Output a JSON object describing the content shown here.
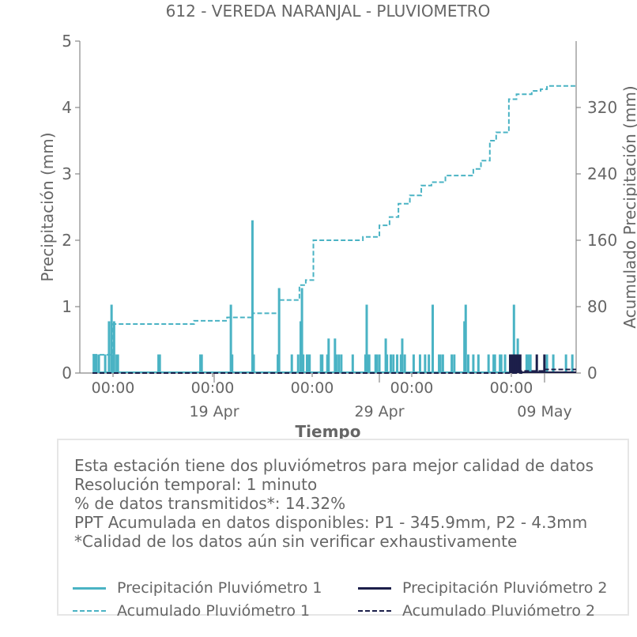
{
  "chart_data": {
    "type": "line",
    "title": "612 - VEREDA NARANJAL - PLUVIOMETRO",
    "xlabel": "Tiempo",
    "ylabel_left": "Precipitación (mm)",
    "ylabel_right": "Acumulado Precipitación (mm)",
    "ylim_left": [
      0,
      5
    ],
    "ylim_right": [
      0,
      400
    ],
    "yticks_left": [
      "0",
      "1",
      "2",
      "3",
      "4",
      "5"
    ],
    "yticks_right": [
      "0",
      "80",
      "160",
      "240",
      "320"
    ],
    "xticks_minor": [
      "00:00",
      "00:00",
      "00:00",
      "00:00",
      "00:00"
    ],
    "xticks_major": [
      "19 Apr",
      "29 Apr",
      "09 May"
    ],
    "grid": false,
    "colors": {
      "pluviometro_1": "#4ab3c4",
      "pluviometro_2": "#1c1f4a",
      "text": "#666666",
      "axis": "#888888"
    },
    "series": [
      {
        "name": "Precipitación Pluviómetro 1",
        "axis": "left",
        "style": "bars",
        "x_days": [
          0.1,
          0.2,
          0.3,
          0.5,
          1.0,
          1.3,
          1.5,
          1.6,
          1.7,
          1.9,
          2.0,
          5.2,
          5.3,
          8.5,
          8.6,
          10.9,
          11.0,
          12.6,
          12.7,
          14.6,
          14.7,
          15.7,
          16.2,
          16.4,
          16.5,
          16.6,
          16.9,
          17.0,
          17.1,
          18.0,
          18.1,
          18.5,
          18.6,
          19.1,
          19.2,
          19.4,
          19.6,
          20.5,
          21.5,
          21.6,
          21.7,
          21.8,
          22.3,
          22.4,
          22.6,
          23.1,
          23.2,
          23.5,
          23.7,
          24.0,
          24.3,
          24.4,
          24.6,
          25.3,
          25.8,
          26.2,
          26.5,
          26.8,
          27.3,
          27.4,
          27.6,
          28.3,
          28.5,
          29.3,
          29.4,
          29.6,
          30.0,
          30.4,
          31.2,
          31.6,
          31.7,
          32.1,
          32.2,
          32.5,
          33.0,
          33.2,
          33.3,
          33.5,
          33.6,
          34.2,
          34.3,
          34.4,
          34.5,
          35.8,
          36.3,
          37.3,
          37.8
        ],
        "values": [
          0.28,
          0.28,
          0.28,
          0.28,
          0.28,
          0.78,
          1.03,
          0.28,
          0.78,
          0.28,
          0.28,
          0.28,
          0.28,
          0.28,
          0.28,
          1.03,
          0.28,
          2.3,
          0.28,
          0.28,
          1.28,
          0.28,
          0.28,
          0.78,
          1.28,
          0.28,
          0.28,
          0.28,
          0.28,
          0.28,
          0.28,
          0.28,
          0.52,
          0.52,
          0.28,
          0.28,
          0.28,
          0.28,
          0.28,
          1.03,
          0.28,
          0.28,
          0.28,
          0.28,
          0.28,
          0.52,
          0.28,
          0.28,
          0.28,
          0.28,
          0.28,
          0.52,
          0.28,
          0.28,
          0.28,
          0.28,
          0.28,
          1.03,
          0.28,
          0.28,
          0.28,
          0.28,
          0.28,
          0.78,
          1.03,
          0.28,
          0.28,
          0.28,
          0.28,
          0.28,
          0.28,
          0.28,
          0.28,
          0.28,
          0.28,
          1.03,
          0.28,
          0.52,
          0.28,
          0.28,
          0.28,
          0.28,
          0.28,
          0.28,
          0.28,
          0.28,
          0.28
        ]
      },
      {
        "name": "Acumulado Pluviómetro 1",
        "axis": "right",
        "style": "dashed-step",
        "x_days": [
          0.0,
          1.3,
          1.6,
          4.2,
          8.0,
          10.6,
          12.6,
          14.7,
          16.3,
          16.8,
          17.4,
          18.8,
          21.3,
          22.6,
          23.4,
          24.1,
          25.0,
          25.9,
          26.7,
          27.8,
          30.0,
          30.6,
          31.3,
          31.8,
          32.8,
          33.4,
          34.6,
          35.3,
          35.8,
          37.1
        ],
        "values": [
          22,
          22,
          59,
          59,
          63,
          67,
          72,
          88,
          106,
          112,
          160,
          160,
          164,
          178,
          188,
          204,
          214,
          226,
          230,
          238,
          246,
          256,
          280,
          290,
          330,
          336,
          340,
          342,
          345.9,
          345.9
        ]
      },
      {
        "name": "Precipitación Pluviómetro 2",
        "axis": "left",
        "style": "bars",
        "x_days": [
          32.9,
          33.0,
          33.1,
          33.2,
          33.3,
          33.4,
          33.5,
          33.6,
          33.7,
          35.0,
          35.6
        ],
        "values": [
          0.28,
          0.28,
          0.28,
          0.28,
          0.28,
          0.28,
          0.28,
          0.28,
          0.28,
          0.28,
          0.28
        ]
      },
      {
        "name": "Acumulado Pluviómetro 2",
        "axis": "right",
        "style": "dashed-step",
        "x_days": [
          0.0,
          32.8,
          33.8,
          35.6,
          37.1
        ],
        "values": [
          0,
          0,
          2.5,
          4.3,
          4.3
        ]
      }
    ]
  },
  "info": {
    "lines": [
      "Esta estación tiene dos pluviómetros para mejor calidad de datos",
      "Resolución temporal: 1 minuto",
      "% de datos transmitidos*: 14.32%",
      "PPT Acumulada en datos disponibles: P1 - 345.9mm, P2 - 4.3mm",
      "*Calidad de los datos aún sin verificar exhaustivamente"
    ]
  },
  "legend": {
    "items": [
      {
        "label": "Precipitación Pluviómetro 1",
        "color": "#4ab3c4",
        "dash": "solid"
      },
      {
        "label": "Precipitación Pluviómetro 2",
        "color": "#1c1f4a",
        "dash": "solid"
      },
      {
        "label": "Acumulado Pluviómetro 1",
        "color": "#4ab3c4",
        "dash": "dashed"
      },
      {
        "label": "Acumulado Pluviómetro 2",
        "color": "#1c1f4a",
        "dash": "dashed"
      }
    ]
  }
}
